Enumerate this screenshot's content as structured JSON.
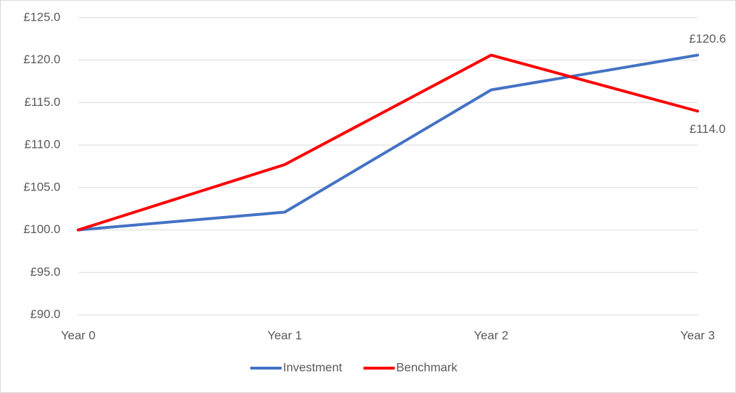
{
  "chart_data": {
    "type": "line",
    "categories": [
      "Year 0",
      "Year 1",
      "Year 2",
      "Year 3"
    ],
    "series": [
      {
        "name": "Investment",
        "color": "#4472c4",
        "values": [
          100,
          102.1,
          116.5,
          120.6
        ],
        "value_labels": [
          null,
          null,
          null,
          "£120.6"
        ]
      },
      {
        "name": "Benchmark",
        "color": "#ff0000",
        "values": [
          100,
          107.7,
          120.6,
          114.0
        ],
        "value_labels": [
          null,
          null,
          null,
          "£114.0"
        ]
      }
    ],
    "ylim": [
      90,
      125
    ],
    "yticks": [
      {
        "value": 90,
        "label": "£90.0"
      },
      {
        "value": 95,
        "label": "£95.0"
      },
      {
        "value": 100,
        "label": "£100.0"
      },
      {
        "value": 105,
        "label": "£105.0"
      },
      {
        "value": 110,
        "label": "£110.0"
      },
      {
        "value": 115,
        "label": "£115.0"
      },
      {
        "value": 120,
        "label": "£120.0"
      },
      {
        "value": 125,
        "label": "£125.0"
      }
    ],
    "grid": true,
    "legend": "bottom"
  }
}
